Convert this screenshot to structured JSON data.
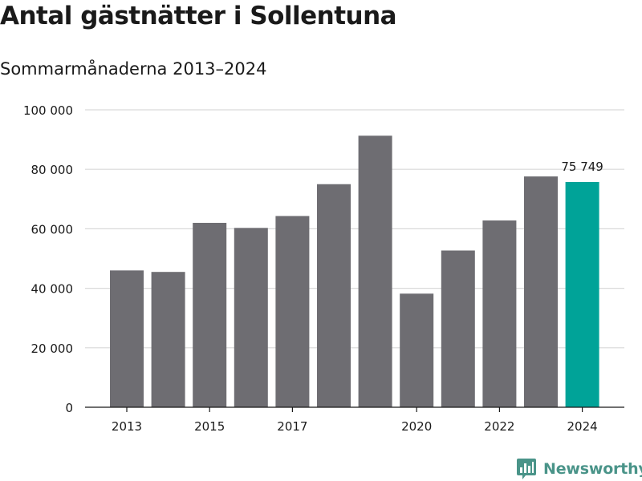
{
  "title": "Antal gästnätter i Sollentuna",
  "subtitle": "Sommarmånaderna 2013–2024",
  "brand": {
    "name": "Newsworthy",
    "color": "#4a9489",
    "icon": "bar-chart-pin-icon"
  },
  "colors": {
    "bar": "#6e6d72",
    "highlight": "#00a398",
    "grid": "#d9d9d9",
    "axis": "#1a1a1a"
  },
  "chart_data": {
    "type": "bar",
    "categories": [
      "2013",
      "2014",
      "2015",
      "2016",
      "2017",
      "2018",
      "2019",
      "2020",
      "2021",
      "2022",
      "2023",
      "2024"
    ],
    "values": [
      46000,
      45500,
      62000,
      60300,
      64300,
      75000,
      91300,
      38200,
      52700,
      62800,
      77600,
      75749
    ],
    "xtick_labels": [
      "2013",
      "2015",
      "2017",
      "2020",
      "2022",
      "2024"
    ],
    "ylim": [
      0,
      100000
    ],
    "yticks": [
      0,
      20000,
      40000,
      60000,
      80000,
      100000
    ],
    "ytick_labels": [
      "0",
      "20 000",
      "40 000",
      "60 000",
      "80 000",
      "100 000"
    ],
    "highlight_index": 11,
    "annotation": "75 749",
    "grid": true
  }
}
